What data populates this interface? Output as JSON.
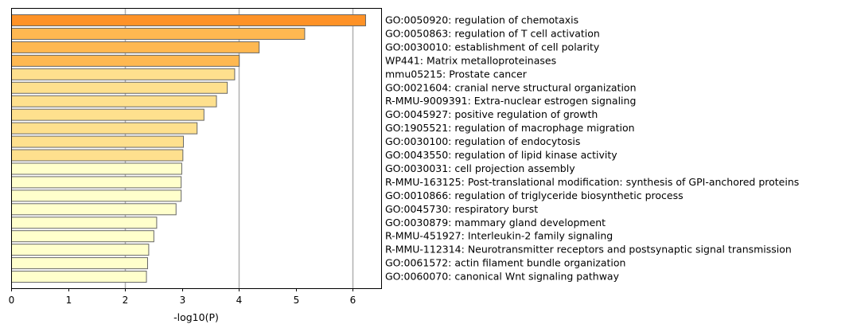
{
  "chart_data": {
    "type": "bar",
    "orientation": "horizontal",
    "xlabel": "-log10(P)",
    "xlim": [
      0,
      6.5
    ],
    "xticks": [
      0,
      1,
      2,
      3,
      4,
      5,
      6
    ],
    "grid": "vertical gridlines at x = 2, 4, 6",
    "categories": [
      "GO:0050920: regulation of chemotaxis",
      "GO:0050863: regulation of T cell activation",
      "GO:0030010: establishment of cell polarity",
      "WP441: Matrix metalloproteinases",
      "mmu05215: Prostate cancer",
      "GO:0021604: cranial nerve structural organization",
      "R-MMU-9009391: Extra-nuclear estrogen signaling",
      "GO:0045927: positive regulation of growth",
      "GO:1905521: regulation of macrophage migration",
      "GO:0030100: regulation of endocytosis",
      "GO:0043550: regulation of lipid kinase activity",
      "GO:0030031: cell projection assembly",
      "R-MMU-163125: Post-translational modification: synthesis of GPI-anchored proteins",
      "GO:0010866: regulation of triglyceride biosynthetic process",
      "GO:0045730: respiratory burst",
      "GO:0030879: mammary gland development",
      "R-MMU-451927: Interleukin-2 family signaling",
      "R-MMU-112314: Neurotransmitter receptors and postsynaptic signal transmission",
      "GO:0061572: actin filament bundle organization",
      "GO:0060070: canonical Wnt signaling pathway"
    ],
    "values": [
      6.22,
      5.15,
      4.35,
      4.0,
      3.92,
      3.79,
      3.6,
      3.38,
      3.26,
      3.02,
      3.01,
      2.99,
      2.98,
      2.98,
      2.89,
      2.55,
      2.5,
      2.41,
      2.39,
      2.37
    ],
    "colors": [
      "#fe9227",
      "#feb851",
      "#feb851",
      "#feb851",
      "#fee08e",
      "#fee08e",
      "#fee08e",
      "#fee08e",
      "#fee08e",
      "#fee08e",
      "#fee08e",
      "#ffffcc",
      "#ffffcc",
      "#ffffcc",
      "#ffffcc",
      "#ffffcc",
      "#ffffcc",
      "#ffffcc",
      "#ffffcc",
      "#ffffcc"
    ],
    "bar_edge_color": "#666666",
    "gridline_color": "#b0b0b0"
  }
}
